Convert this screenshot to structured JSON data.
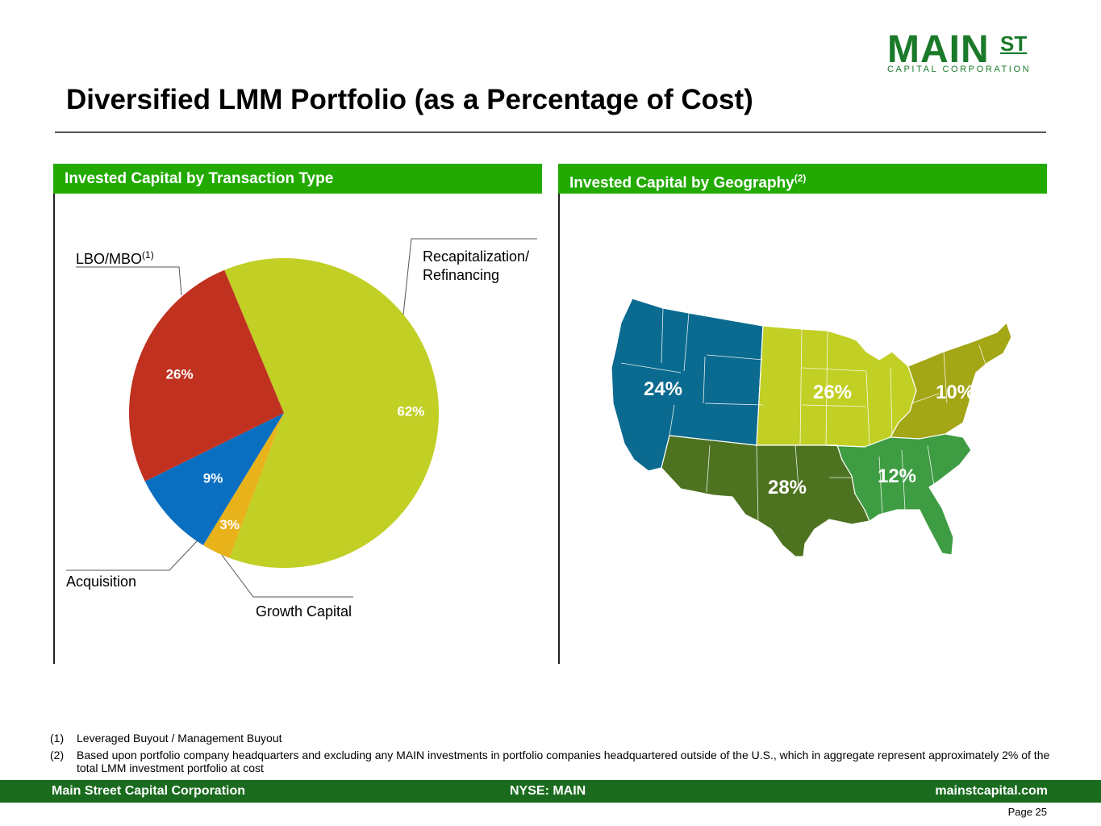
{
  "logo": {
    "main": "MAIN",
    "st": "ST",
    "sub": "CAPITAL CORPORATION"
  },
  "title": "Diversified LMM Portfolio (as a Percentage of Cost)",
  "left_panel": {
    "heading": "Invested Capital by Transaction Type"
  },
  "right_panel": {
    "heading": "Invested Capital by Geography",
    "heading_sup": "(2)"
  },
  "callouts": {
    "lbo": "LBO/MBO",
    "lbo_sup": "(1)",
    "recap_line1": "Recapitalization/",
    "recap_line2": "Refinancing",
    "acquisition": "Acquisition",
    "growth": "Growth Capital"
  },
  "chart_data": [
    {
      "type": "pie",
      "title": "Invested Capital by Transaction Type",
      "categories": [
        "Recapitalization/Refinancing",
        "Growth Capital",
        "Acquisition",
        "LBO/MBO"
      ],
      "values": [
        62,
        3,
        9,
        26
      ],
      "labels": [
        "62%",
        "3%",
        "9%",
        "26%"
      ],
      "colors": [
        "#c2cf25",
        "#e8b21a",
        "#0b6fc1",
        "#c0321f"
      ]
    },
    {
      "type": "choropleth",
      "title": "Invested Capital by Geography",
      "categories": [
        "West",
        "Midwest",
        "Northeast",
        "Southwest",
        "Southeast"
      ],
      "values": [
        24,
        26,
        10,
        28,
        12
      ],
      "labels": [
        "24%",
        "26%",
        "10%",
        "28%",
        "12%"
      ],
      "colors": [
        "#0b6a8f",
        "#c2cf25",
        "#a3a615",
        "#4e7320",
        "#3e9c42"
      ]
    }
  ],
  "footnotes": [
    {
      "num": "(1)",
      "text": "Leveraged Buyout / Management Buyout"
    },
    {
      "num": "(2)",
      "text": "Based upon portfolio company headquarters and excluding any MAIN investments in portfolio companies headquartered outside of the U.S., which in aggregate represent approximately 2% of the total LMM investment portfolio at cost"
    }
  ],
  "footer": {
    "company": "Main Street Capital Corporation",
    "ticker": "NYSE: MAIN",
    "website": "mainstcapital.com"
  },
  "page": "Page  25"
}
